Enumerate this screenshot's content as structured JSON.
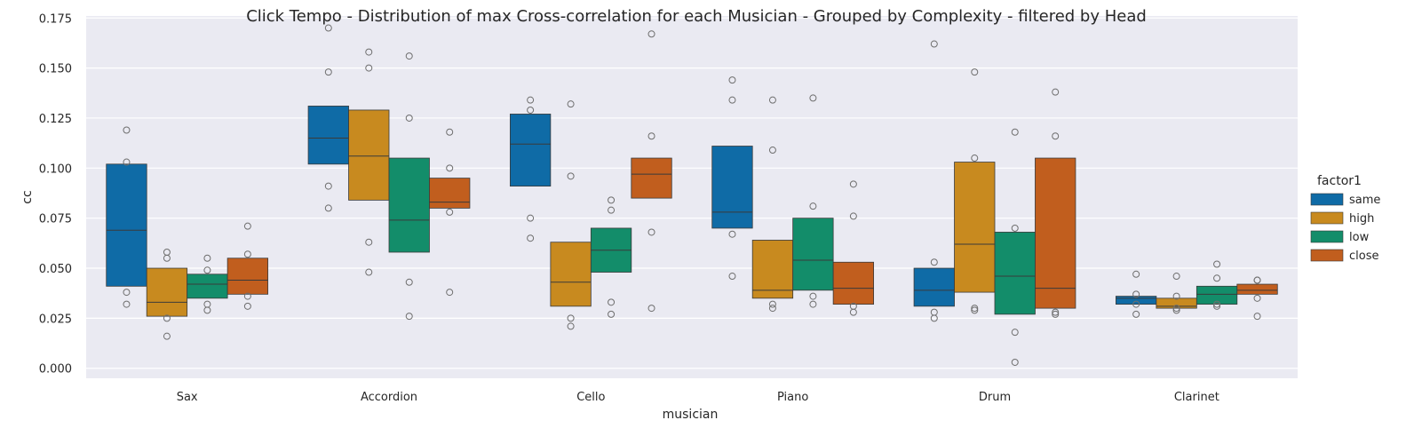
{
  "chart_data": {
    "type": "boxenplot",
    "title": "Click Tempo - Distribution of max Cross-correlation for each Musician - Grouped by Complexity - filtered by Head",
    "xlabel": "musician",
    "ylabel": "cc",
    "ylim": [
      -0.005,
      0.176
    ],
    "yticks": [
      0.0,
      0.025,
      0.05,
      0.075,
      0.1,
      0.125,
      0.15,
      0.175
    ],
    "ytick_labels": [
      "0.000",
      "0.025",
      "0.050",
      "0.075",
      "0.100",
      "0.125",
      "0.150",
      "0.175"
    ],
    "categories": [
      "Sax",
      "Accordion",
      "Cello",
      "Piano",
      "Drum",
      "Clarinet"
    ],
    "grid": true,
    "legend": {
      "title": "factor1",
      "placement": "right"
    },
    "series": [
      {
        "name": "same",
        "color": "#0f6ba6",
        "boxes": [
          {
            "low": 0.041,
            "median": 0.069,
            "high": 0.102,
            "outliers": [
              0.119,
              0.103,
              0.038,
              0.032
            ]
          },
          {
            "low": 0.102,
            "median": 0.115,
            "high": 0.131,
            "outliers": [
              0.17,
              0.148,
              0.091,
              0.08
            ]
          },
          {
            "low": 0.091,
            "median": 0.112,
            "high": 0.127,
            "outliers": [
              0.134,
              0.129,
              0.075,
              0.065
            ]
          },
          {
            "low": 0.07,
            "median": 0.078,
            "high": 0.111,
            "outliers": [
              0.144,
              0.134,
              0.067,
              0.046
            ]
          },
          {
            "low": 0.031,
            "median": 0.039,
            "high": 0.05,
            "outliers": [
              0.162,
              0.053,
              0.028,
              0.025
            ]
          },
          {
            "low": 0.032,
            "median": 0.035,
            "high": 0.036,
            "outliers": [
              0.047,
              0.037,
              0.032,
              0.027
            ]
          }
        ]
      },
      {
        "name": "high",
        "color": "#c88a1f",
        "boxes": [
          {
            "low": 0.026,
            "median": 0.033,
            "high": 0.05,
            "outliers": [
              0.058,
              0.055,
              0.025,
              0.016
            ]
          },
          {
            "low": 0.084,
            "median": 0.106,
            "high": 0.129,
            "outliers": [
              0.158,
              0.15,
              0.063,
              0.048
            ]
          },
          {
            "low": 0.031,
            "median": 0.043,
            "high": 0.063,
            "outliers": [
              0.132,
              0.096,
              0.025,
              0.021
            ]
          },
          {
            "low": 0.035,
            "median": 0.039,
            "high": 0.064,
            "outliers": [
              0.134,
              0.109,
              0.032,
              0.03
            ]
          },
          {
            "low": 0.038,
            "median": 0.062,
            "high": 0.103,
            "outliers": [
              0.148,
              0.105,
              0.03,
              0.029
            ]
          },
          {
            "low": 0.03,
            "median": 0.031,
            "high": 0.035,
            "outliers": [
              0.046,
              0.036,
              0.03,
              0.029
            ]
          }
        ]
      },
      {
        "name": "low",
        "color": "#138d6a",
        "boxes": [
          {
            "low": 0.035,
            "median": 0.042,
            "high": 0.047,
            "outliers": [
              0.055,
              0.049,
              0.032,
              0.029
            ]
          },
          {
            "low": 0.058,
            "median": 0.074,
            "high": 0.105,
            "outliers": [
              0.156,
              0.125,
              0.043,
              0.026
            ]
          },
          {
            "low": 0.048,
            "median": 0.059,
            "high": 0.07,
            "outliers": [
              0.084,
              0.079,
              0.033,
              0.027
            ]
          },
          {
            "low": 0.039,
            "median": 0.054,
            "high": 0.075,
            "outliers": [
              0.135,
              0.081,
              0.036,
              0.032
            ]
          },
          {
            "low": 0.027,
            "median": 0.046,
            "high": 0.068,
            "outliers": [
              0.118,
              0.07,
              0.018,
              0.003
            ]
          },
          {
            "low": 0.032,
            "median": 0.037,
            "high": 0.041,
            "outliers": [
              0.052,
              0.045,
              0.032,
              0.031
            ]
          }
        ]
      },
      {
        "name": "close",
        "color": "#c15e1e",
        "boxes": [
          {
            "low": 0.037,
            "median": 0.044,
            "high": 0.055,
            "outliers": [
              0.071,
              0.057,
              0.036,
              0.031
            ]
          },
          {
            "low": 0.08,
            "median": 0.083,
            "high": 0.095,
            "outliers": [
              0.118,
              0.1,
              0.078,
              0.038
            ]
          },
          {
            "low": 0.085,
            "median": 0.097,
            "high": 0.105,
            "outliers": [
              0.167,
              0.116,
              0.068,
              0.03
            ]
          },
          {
            "low": 0.032,
            "median": 0.04,
            "high": 0.053,
            "outliers": [
              0.092,
              0.076,
              0.031,
              0.028
            ]
          },
          {
            "low": 0.03,
            "median": 0.04,
            "high": 0.105,
            "outliers": [
              0.138,
              0.116,
              0.028,
              0.027
            ]
          },
          {
            "low": 0.037,
            "median": 0.039,
            "high": 0.042,
            "outliers": [
              0.044,
              0.044,
              0.035,
              0.026
            ]
          }
        ]
      }
    ]
  }
}
